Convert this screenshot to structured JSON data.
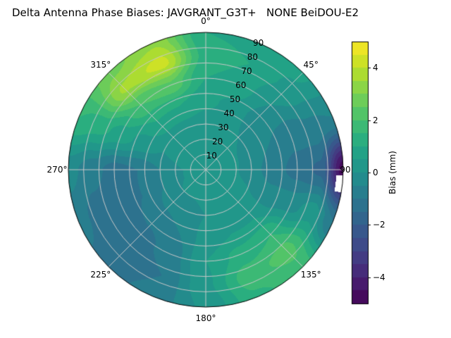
{
  "title": "Delta Antenna Phase Biases: JAVGRANT_G3T+   NONE BeiDOU-E2",
  "colors": {
    "background": "#ffffff",
    "grid_line": "#c8c8c8",
    "spine": "#000000",
    "text": "#000000",
    "colormap_min": "#440154",
    "colormap_mid": "#21918c",
    "colormap_max": "#fde725"
  },
  "chart_data": {
    "type": "heatmap",
    "projection": "polar",
    "title": "Delta Antenna Phase Biases: JAVGRANT_G3T+   NONE BeiDOU-E2",
    "colormap": "viridis",
    "value_range": [
      -5,
      5
    ],
    "levels_step_mm": 0.5,
    "grid": true,
    "azimuth_deg": [
      0,
      22.5,
      45,
      67.5,
      90,
      112.5,
      135,
      157.5,
      180,
      202.5,
      225,
      247.5,
      270,
      292.5,
      315,
      337.5,
      360
    ],
    "zenith_deg": [
      0,
      15,
      30,
      45,
      60,
      75,
      90
    ],
    "values_mm": [
      [
        0.3,
        0.3,
        0.3,
        0.6,
        1.0,
        1.3,
        1.0
      ],
      [
        0.3,
        0.3,
        0.2,
        0.4,
        0.8,
        1.0,
        0.8
      ],
      [
        0.3,
        0.2,
        0.0,
        -0.2,
        0.0,
        0.4,
        0.6
      ],
      [
        0.3,
        0.2,
        -0.2,
        -0.5,
        -0.8,
        -0.6,
        -0.5
      ],
      [
        0.3,
        0.2,
        -0.3,
        -0.8,
        -1.2,
        -1.6,
        -4.8
      ],
      [
        0.3,
        0.2,
        0.0,
        -0.3,
        -0.2,
        0.3,
        -1.0
      ],
      [
        0.3,
        0.2,
        0.2,
        0.5,
        1.5,
        2.2,
        1.8
      ],
      [
        0.3,
        0.2,
        0.2,
        0.5,
        1.2,
        1.8,
        1.4
      ],
      [
        0.3,
        0.2,
        0.0,
        0.2,
        0.5,
        0.4,
        0.1
      ],
      [
        0.3,
        0.1,
        -0.2,
        -0.5,
        -0.8,
        -1.0,
        -0.8
      ],
      [
        0.3,
        0.1,
        -0.3,
        -0.8,
        -1.2,
        -1.5,
        -1.2
      ],
      [
        0.3,
        0.0,
        -0.5,
        -1.0,
        -1.4,
        -1.2,
        -0.8
      ],
      [
        0.3,
        0.0,
        -0.5,
        -1.0,
        -1.2,
        -0.8,
        -0.3
      ],
      [
        0.3,
        0.2,
        0.0,
        0.3,
        0.8,
        1.2,
        1.5
      ],
      [
        0.3,
        0.3,
        0.3,
        1.0,
        2.0,
        3.6,
        2.8
      ],
      [
        0.3,
        0.3,
        0.3,
        1.0,
        2.4,
        4.2,
        3.4
      ],
      [
        0.3,
        0.3,
        0.3,
        0.6,
        1.0,
        1.3,
        1.0
      ]
    ],
    "masked_region": {
      "azimuth_deg": [
        92.5,
        99.5
      ],
      "zenith_deg": [
        85.5,
        90
      ]
    },
    "theta_ticks_deg": [
      0,
      45,
      90,
      135,
      180,
      225,
      270,
      315
    ],
    "theta_tick_labels": [
      "0°",
      "45°",
      "90",
      "135°",
      "180°",
      "225°",
      "270°",
      "315°"
    ],
    "r_ticks": [
      10,
      20,
      30,
      40,
      50,
      60,
      70,
      80,
      90
    ],
    "r_tick_labels": [
      "10",
      "20",
      "30",
      "40",
      "50",
      "60",
      "70",
      "80",
      "90"
    ],
    "r_label_azimuth_deg": 22.5,
    "colorbar": {
      "label": "Bias (mm)",
      "min": -5,
      "max": 5,
      "ticks": [
        -4,
        -2,
        0,
        2,
        4
      ],
      "tick_labels": [
        "−4",
        "−2",
        "0",
        "2",
        "4"
      ]
    }
  }
}
